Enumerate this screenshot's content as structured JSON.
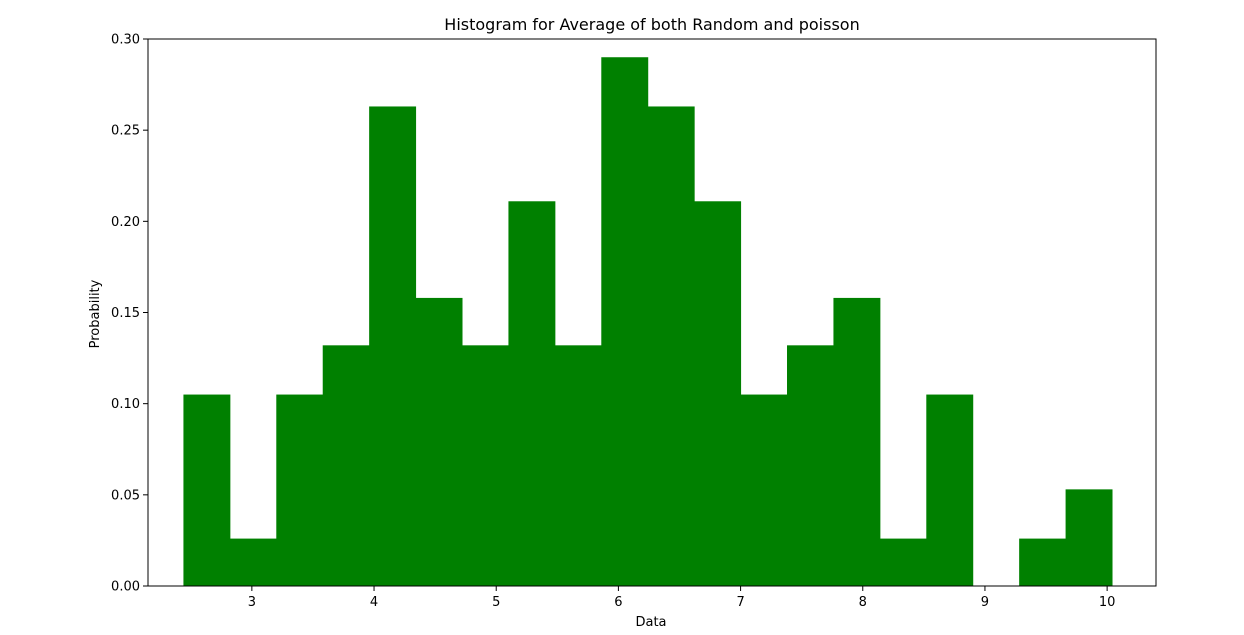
{
  "chart_data": {
    "type": "bar",
    "title": "Histogram for Average of both Random and poisson",
    "xlabel": "Data",
    "ylabel": "Probability",
    "bar_color": "#008000",
    "xlim": [
      2.15,
      10.4
    ],
    "ylim": [
      0,
      0.3
    ],
    "xticks": [
      3,
      4,
      5,
      6,
      7,
      8,
      9,
      10
    ],
    "yticks": [
      0.0,
      0.05,
      0.1,
      0.15,
      0.2,
      0.25,
      0.3
    ],
    "ytick_labels": [
      "0.00",
      "0.05",
      "0.10",
      "0.15",
      "0.20",
      "0.25",
      "0.30"
    ],
    "bin_edges": [
      2.44,
      2.82,
      3.2,
      3.58,
      3.96,
      4.34,
      4.72,
      5.1,
      5.48,
      5.86,
      6.24,
      6.62,
      7.0,
      7.38,
      7.76,
      8.14,
      8.52,
      8.9,
      9.28,
      9.66,
      10.04
    ],
    "values": [
      0.105,
      0.026,
      0.105,
      0.132,
      0.263,
      0.158,
      0.132,
      0.211,
      0.132,
      0.29,
      0.263,
      0.211,
      0.105,
      0.132,
      0.158,
      0.026,
      0.105,
      0.0,
      0.026,
      0.053
    ],
    "grid": false,
    "legend": false
  }
}
